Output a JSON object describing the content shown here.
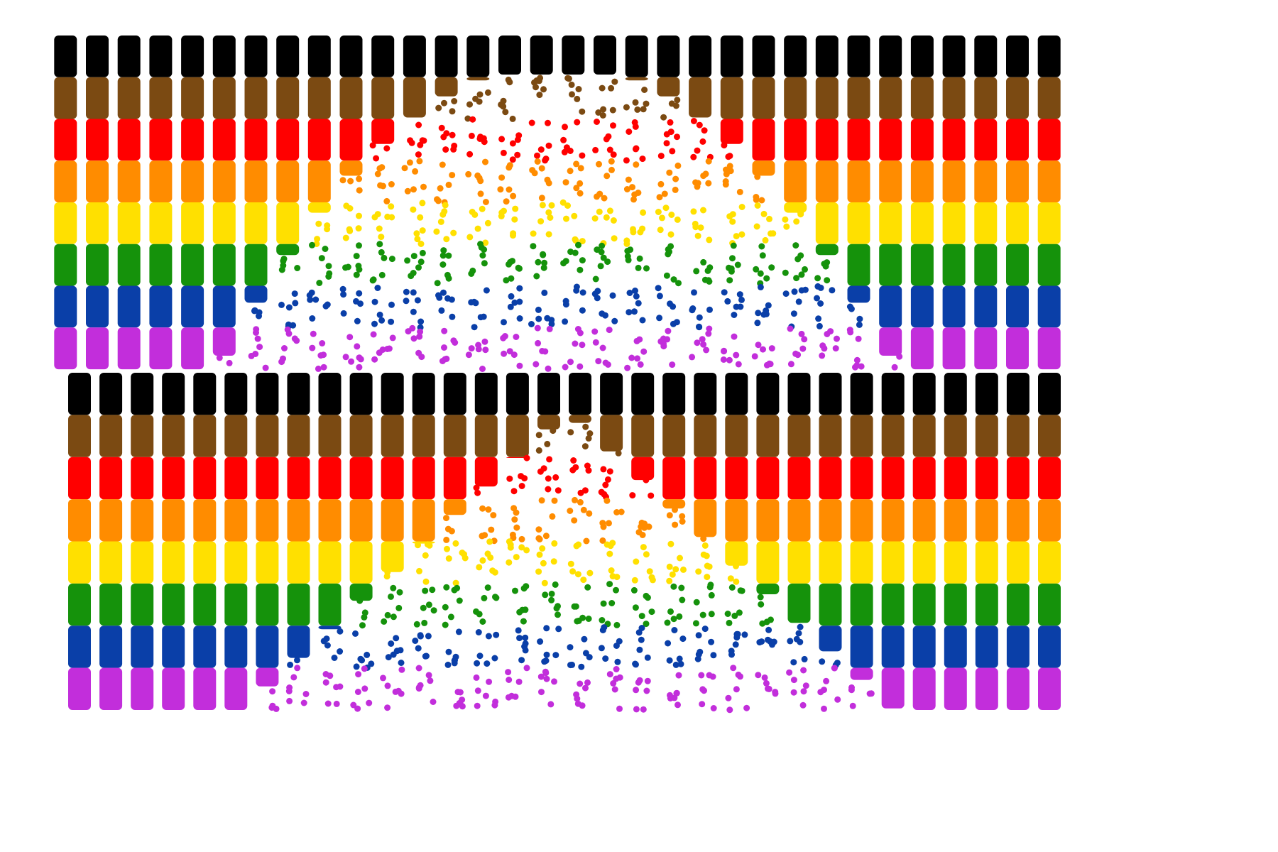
{
  "artwork": {
    "description_label": "",
    "background_color": "#ffffff",
    "stripe_colors": [
      "#000000",
      "#7b4a12",
      "#ff0000",
      "#ff8c00",
      "#ffe000",
      "#15920b",
      "#0a3fa8",
      "#c22edb"
    ],
    "stripe_names": [
      "black",
      "brown",
      "red",
      "orange",
      "yellow",
      "green",
      "blue",
      "purple"
    ],
    "top_panel": {
      "column_count": 32,
      "pattern": "pride-flag-stripes-with-scattered-center-arch"
    },
    "bottom_panel": {
      "column_count": 32,
      "pattern": "pride-flag-stripes-with-scattered-center-valley"
    }
  }
}
